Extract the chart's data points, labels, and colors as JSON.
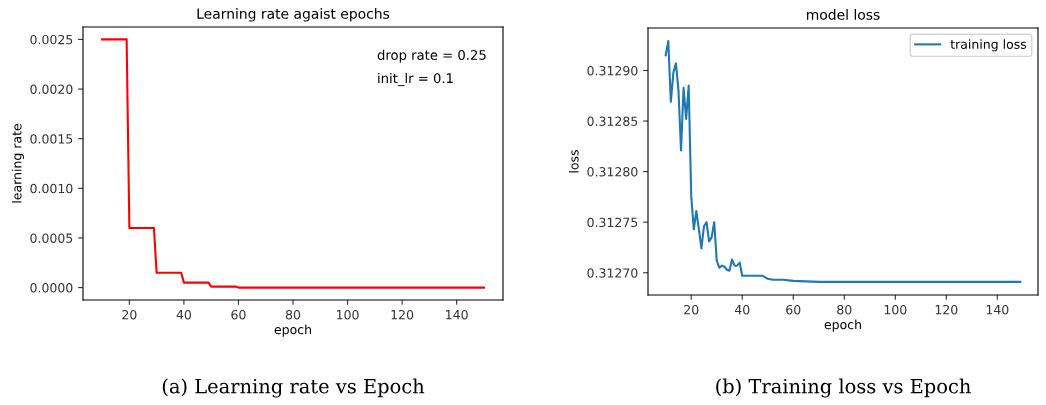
{
  "chart_data": [
    {
      "type": "line",
      "title": "Learning rate agaist epochs",
      "xlabel": "epoch",
      "ylabel": "learning rate",
      "x": [
        10,
        19,
        20,
        29,
        30,
        39,
        40,
        49,
        50,
        59,
        60,
        150
      ],
      "series": [
        {
          "color": "#ff0000",
          "values": [
            0.0025,
            0.0025,
            0.0006,
            0.0006,
            0.00015,
            0.00015,
            5e-05,
            5e-05,
            1e-05,
            1e-05,
            0,
            0
          ]
        }
      ],
      "xlim": [
        3,
        157
      ],
      "ylim": [
        -0.000125,
        0.002625
      ],
      "xticks": [
        20,
        40,
        60,
        80,
        100,
        120,
        140
      ],
      "yticks": [
        {
          "value": 0,
          "label": "0.0000"
        },
        {
          "value": 0.0005,
          "label": "0.0005"
        },
        {
          "value": 0.001,
          "label": "0.0010"
        },
        {
          "value": 0.0015,
          "label": "0.0015"
        },
        {
          "value": 0.002,
          "label": "0.0020"
        },
        {
          "value": 0.0025,
          "label": "0.0025"
        }
      ],
      "grid": false,
      "legend": false,
      "annotations": [
        "drop rate = 0.25",
        "init_lr = 0.1",
        "(a) Learning rate vs Epoch"
      ]
    },
    {
      "type": "line",
      "title": "model loss",
      "xlabel": "epoch",
      "ylabel": "loss",
      "x": [
        10,
        11,
        12,
        13,
        14,
        15,
        16,
        17,
        18,
        19,
        20,
        21,
        22,
        23,
        24,
        25,
        26,
        27,
        28,
        29,
        30,
        31,
        32,
        33,
        34,
        35,
        36,
        37,
        38,
        39,
        40,
        44,
        48,
        50,
        52,
        56,
        60,
        70,
        80,
        90,
        100,
        110,
        120,
        130,
        140,
        145,
        149
      ],
      "series": [
        {
          "name": "training loss",
          "color": "#1f77b4",
          "values": [
            0.312915,
            0.312929,
            0.312869,
            0.312898,
            0.312907,
            0.31288,
            0.312821,
            0.312883,
            0.312852,
            0.312885,
            0.312776,
            0.312743,
            0.312761,
            0.312743,
            0.312724,
            0.312746,
            0.31275,
            0.312731,
            0.312735,
            0.31275,
            0.312712,
            0.312705,
            0.312707,
            0.312706,
            0.312703,
            0.312702,
            0.312713,
            0.312707,
            0.312707,
            0.31271,
            0.312697,
            0.312697,
            0.312697,
            0.312694,
            0.312693,
            0.312693,
            0.312692,
            0.312691,
            0.312691,
            0.312691,
            0.312691,
            0.312691,
            0.312691,
            0.312691,
            0.312691,
            0.312691,
            0.312691
          ]
        }
      ],
      "xlim": [
        3.05,
        155.95
      ],
      "ylim": [
        0.312678,
        0.312942
      ],
      "xticks": [
        20,
        40,
        60,
        80,
        100,
        120,
        140
      ],
      "yticks": [
        {
          "value": 0.3127,
          "label": "0.31270"
        },
        {
          "value": 0.31275,
          "label": "0.31275"
        },
        {
          "value": 0.3128,
          "label": "0.31280"
        },
        {
          "value": 0.31285,
          "label": "0.31285"
        },
        {
          "value": 0.3129,
          "label": "0.31290"
        }
      ],
      "grid": false,
      "legend": "top right",
      "annotations": [
        "(b) Training loss vs Epoch"
      ]
    }
  ]
}
